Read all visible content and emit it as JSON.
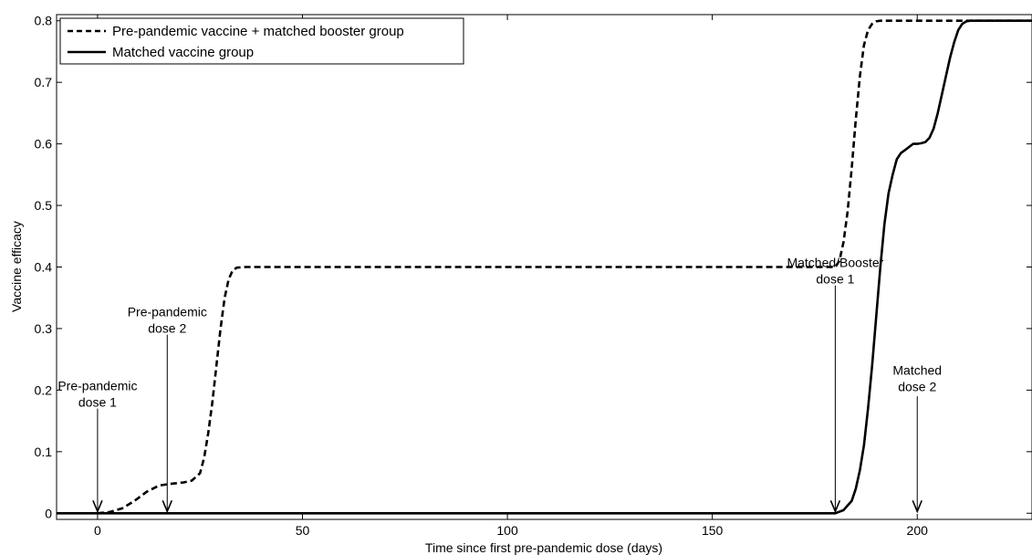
{
  "chart_data": {
    "type": "line",
    "title": "",
    "xlabel": "Time since first pre-pandemic dose (days)",
    "ylabel": "Vaccine efficacy",
    "xlim": [
      -10,
      228
    ],
    "ylim": [
      -0.01,
      0.81
    ],
    "xticks": [
      0,
      50,
      100,
      150,
      200
    ],
    "yticks": [
      0,
      0.1,
      0.2,
      0.3,
      0.4,
      0.5,
      0.6,
      0.7,
      0.8
    ],
    "xtick_labels": [
      "0",
      "50",
      "100",
      "150",
      "200"
    ],
    "ytick_labels": [
      "0",
      "0.1",
      "0.2",
      "0.3",
      "0.4",
      "0.5",
      "0.6",
      "0.7",
      "0.8"
    ],
    "grid": false,
    "legend_position": "top-left",
    "series": [
      {
        "name": "Pre-pandemic vaccine + matched booster group",
        "style": "dashed",
        "color": "#000000",
        "x": [
          0,
          3,
          6,
          9,
          12,
          15,
          18,
          21,
          23,
          25,
          26,
          27,
          28,
          29,
          30,
          31,
          32,
          33,
          34,
          36,
          38,
          50,
          100,
          150,
          180,
          181,
          182,
          183,
          184,
          185,
          186,
          187,
          188,
          189,
          190,
          191,
          193,
          195,
          228
        ],
        "y": [
          0,
          0.002,
          0.008,
          0.02,
          0.035,
          0.045,
          0.048,
          0.05,
          0.053,
          0.065,
          0.09,
          0.13,
          0.18,
          0.24,
          0.3,
          0.35,
          0.38,
          0.395,
          0.399,
          0.4,
          0.4,
          0.4,
          0.4,
          0.4,
          0.4,
          0.41,
          0.44,
          0.49,
          0.56,
          0.64,
          0.71,
          0.76,
          0.785,
          0.795,
          0.799,
          0.8,
          0.8,
          0.8,
          0.8
        ]
      },
      {
        "name": "Matched vaccine group",
        "style": "solid",
        "color": "#000000",
        "x": [
          -10,
          0,
          50,
          100,
          150,
          180,
          182,
          184,
          185,
          186,
          187,
          188,
          189,
          190,
          191,
          192,
          193,
          194,
          195,
          196,
          197,
          198,
          199,
          200,
          201,
          202,
          203,
          204,
          205,
          206,
          207,
          208,
          209,
          210,
          211,
          212,
          213,
          214,
          215,
          216,
          218,
          220,
          228
        ],
        "y": [
          0,
          0,
          0,
          0,
          0,
          0,
          0.005,
          0.02,
          0.04,
          0.07,
          0.11,
          0.17,
          0.24,
          0.32,
          0.4,
          0.47,
          0.52,
          0.55,
          0.575,
          0.585,
          0.59,
          0.595,
          0.6,
          0.6,
          0.601,
          0.603,
          0.61,
          0.625,
          0.65,
          0.68,
          0.71,
          0.74,
          0.765,
          0.785,
          0.795,
          0.799,
          0.8,
          0.8,
          0.8,
          0.8,
          0.8,
          0.8,
          0.8
        ]
      }
    ],
    "annotations": [
      {
        "lines": [
          "Pre-pandemic",
          "dose 1"
        ],
        "x": 0,
        "text_y": 0.2,
        "arrow_from": 0.17,
        "arrow_to": 0.0
      },
      {
        "lines": [
          "Pre-pandemic",
          "dose 2"
        ],
        "x": 17,
        "text_y": 0.32,
        "arrow_from": 0.29,
        "arrow_to": 0.0
      },
      {
        "lines": [
          "Matched/Booster",
          "dose 1"
        ],
        "x": 180,
        "text_y": 0.4,
        "arrow_from": 0.37,
        "arrow_to": 0.0
      },
      {
        "lines": [
          "Matched",
          "dose 2"
        ],
        "x": 200,
        "text_y": 0.225,
        "arrow_from": 0.19,
        "arrow_to": 0.0
      }
    ]
  }
}
